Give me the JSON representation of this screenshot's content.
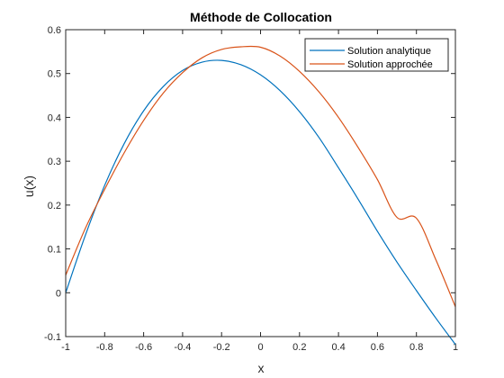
{
  "chart_data": {
    "type": "line",
    "title": "Méthode de Collocation",
    "xlabel": "x",
    "ylabel": "u(x)",
    "xlim": [
      -1,
      1
    ],
    "ylim": [
      -0.1,
      0.6
    ],
    "xticks": [
      -1,
      -0.8,
      -0.6,
      -0.4,
      -0.2,
      0,
      0.2,
      0.4,
      0.6,
      0.8,
      1
    ],
    "xtick_labels": [
      "-1",
      "-0.8",
      "-0.6",
      "-0.4",
      "-0.2",
      "0",
      "0.2",
      "0.4",
      "0.6",
      "0.8",
      "1"
    ],
    "yticks": [
      -0.1,
      0,
      0.1,
      0.2,
      0.3,
      0.4,
      0.5,
      0.6
    ],
    "ytick_labels": [
      "-0.1",
      "0",
      "0.1",
      "0.2",
      "0.3",
      "0.4",
      "0.5",
      "0.6"
    ],
    "grid": false,
    "legend_position": "top-right",
    "x": [
      -1,
      -0.9,
      -0.8,
      -0.7,
      -0.6,
      -0.5,
      -0.4,
      -0.3,
      -0.2,
      -0.1,
      0,
      0.1,
      0.2,
      0.3,
      0.4,
      0.5,
      0.6,
      0.7,
      0.8,
      0.9,
      1
    ],
    "series": [
      {
        "name": "Solution analytique",
        "color": "#0072bd",
        "values": [
          0.0,
          0.13,
          0.245,
          0.34,
          0.415,
          0.47,
          0.507,
          0.526,
          0.53,
          0.52,
          0.497,
          0.461,
          0.413,
          0.354,
          0.285,
          0.214,
          0.14,
          0.07,
          0.005,
          -0.058,
          -0.118
        ]
      },
      {
        "name": "Solution approchée",
        "color": "#d95319",
        "values": [
          0.04,
          0.146,
          0.236,
          0.319,
          0.393,
          0.455,
          0.502,
          0.536,
          0.555,
          0.561,
          0.56,
          0.54,
          0.505,
          0.458,
          0.4,
          0.332,
          0.258,
          0.172,
          0.17,
          0.075,
          -0.032
        ]
      }
    ]
  }
}
